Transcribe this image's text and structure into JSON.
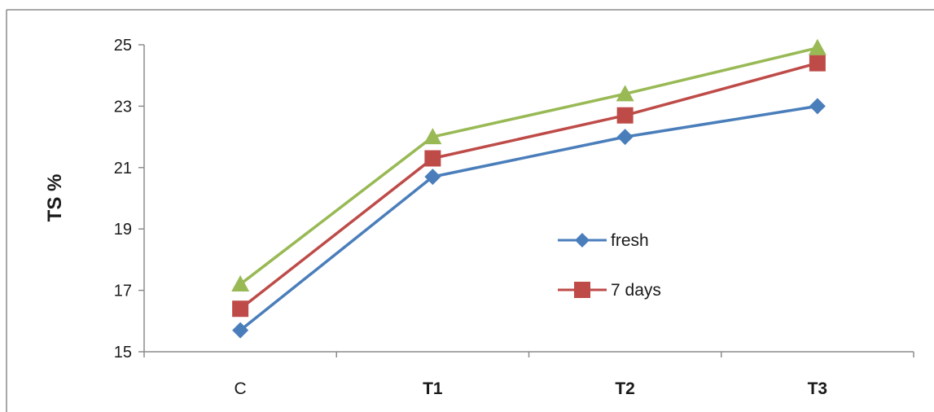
{
  "chart_data": {
    "type": "line",
    "title": "",
    "xlabel": "",
    "ylabel": "TS %",
    "categories": [
      "C",
      "T1",
      "T2",
      "T3"
    ],
    "ylim": [
      15,
      25
    ],
    "yticks": [
      "15",
      "17",
      "19",
      "21",
      "23",
      "25"
    ],
    "grid": false,
    "legend_position": "center-right",
    "series": [
      {
        "name": "fresh",
        "values": [
          15.7,
          20.7,
          22.0,
          23.0
        ],
        "color": "#4a7ebb",
        "marker": "diamond"
      },
      {
        "name": "7 days",
        "values": [
          16.4,
          21.3,
          22.7,
          24.4
        ],
        "color": "#be4b48",
        "marker": "square"
      },
      {
        "name": "",
        "values": [
          17.2,
          22.0,
          23.4,
          24.9
        ],
        "color": "#98b954",
        "marker": "triangle"
      }
    ]
  }
}
